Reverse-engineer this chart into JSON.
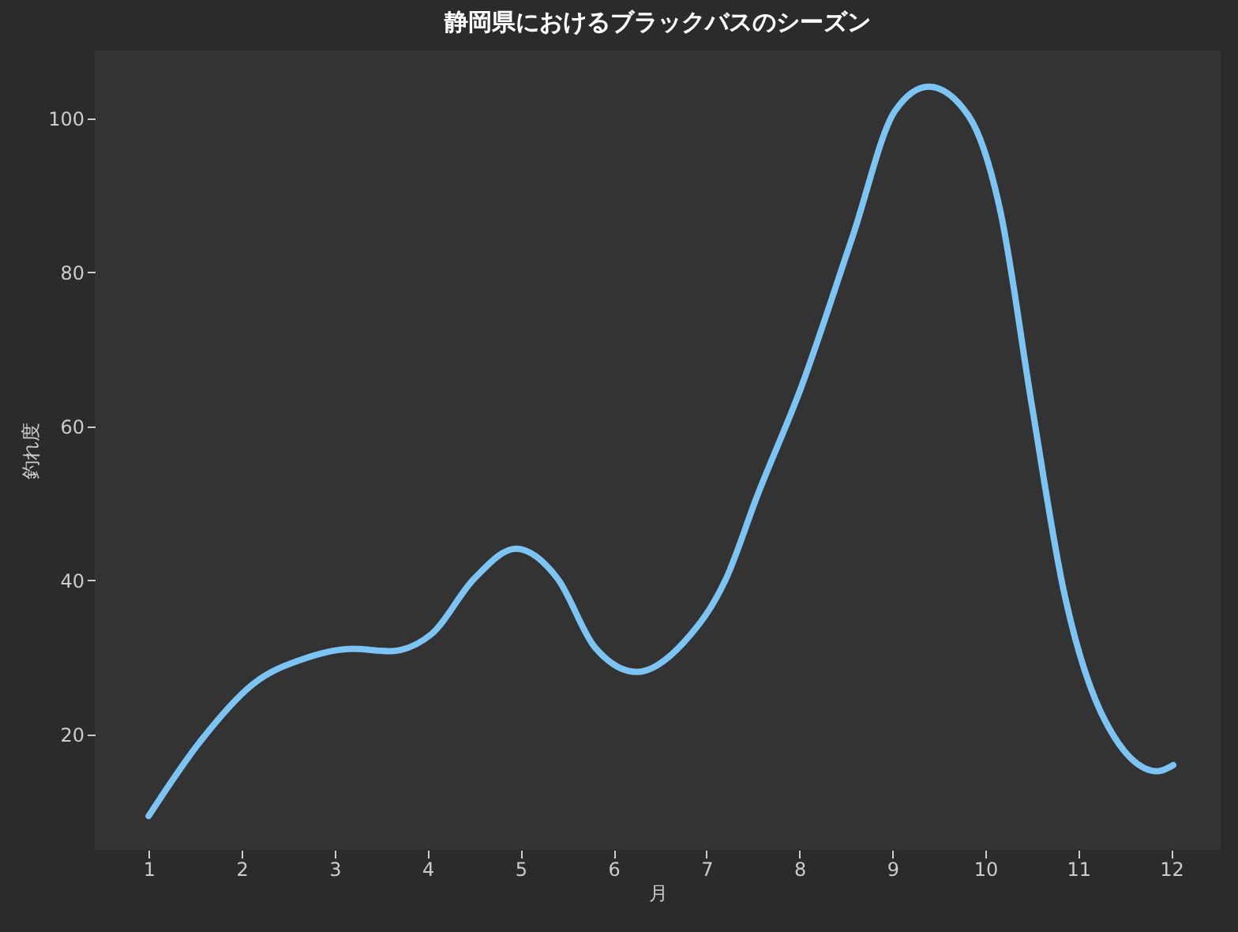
{
  "chart_data": {
    "type": "line",
    "title": "静岡県におけるブラックバスのシーズン",
    "xlabel": "月",
    "ylabel": "釣れ度",
    "x": [
      1,
      1.55,
      2.12,
      2.69,
      3.2,
      3.59,
      4.04,
      4.5,
      4.95,
      5.4,
      5.8,
      6.25,
      6.76,
      7.21,
      7.55,
      8.01,
      8.57,
      9.03,
      9.39,
      9.82,
      10.16,
      10.5,
      10.84,
      11.29,
      11.85,
      12.02
    ],
    "series": [
      {
        "color": "#7cc4f4",
        "values": [
          9.4,
          19,
          26.5,
          29.9,
          31.1,
          30.8,
          33,
          40.2,
          44.1,
          40.2,
          31.3,
          28.1,
          32,
          40.2,
          51.1,
          64.8,
          84.6,
          101,
          104.1,
          100.3,
          88,
          62.7,
          38.8,
          21.7,
          15.2,
          16
        ]
      }
    ],
    "xlim": [
      0.42,
      12.53
    ],
    "ylim": [
      5,
      108.8
    ],
    "xticks": [
      1,
      2,
      3,
      4,
      5,
      6,
      7,
      8,
      9,
      10,
      11,
      12
    ],
    "yticks": [
      20,
      40,
      60,
      80,
      100
    ],
    "grid": false,
    "marker": "none",
    "line_style": "solid"
  }
}
